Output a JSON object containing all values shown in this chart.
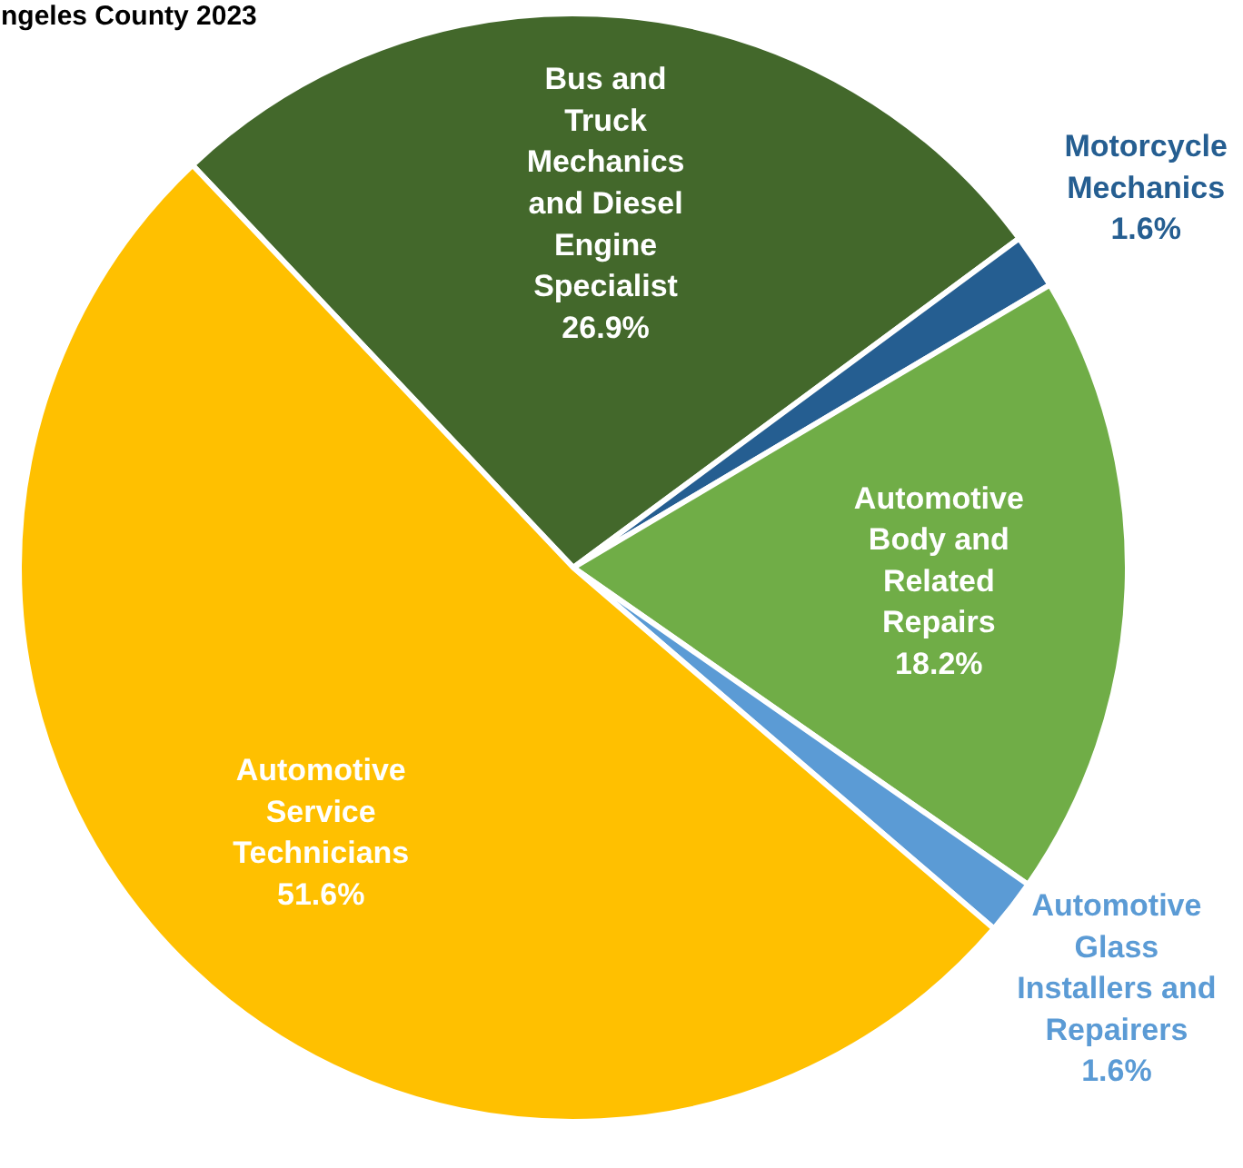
{
  "chart_data": {
    "type": "pie",
    "title": "ngeles County 2023",
    "categories": [
      "Bus and Truck Mechanics and Diesel Engine Specialist",
      "Motorcycle Mechanics",
      "Automotive Body and Related Repairs",
      "Automotive Glass Installers and Repairers",
      "Automotive Service Technicians"
    ],
    "values": [
      26.9,
      1.6,
      18.2,
      1.6,
      51.6
    ],
    "colors": [
      "#43682b",
      "#255e91",
      "#70ad47",
      "#5b9bd5",
      "#ffc000"
    ],
    "value_labels": [
      "26.9%",
      "1.6%",
      "18.2%",
      "1.6%",
      "51.6%"
    ]
  }
}
